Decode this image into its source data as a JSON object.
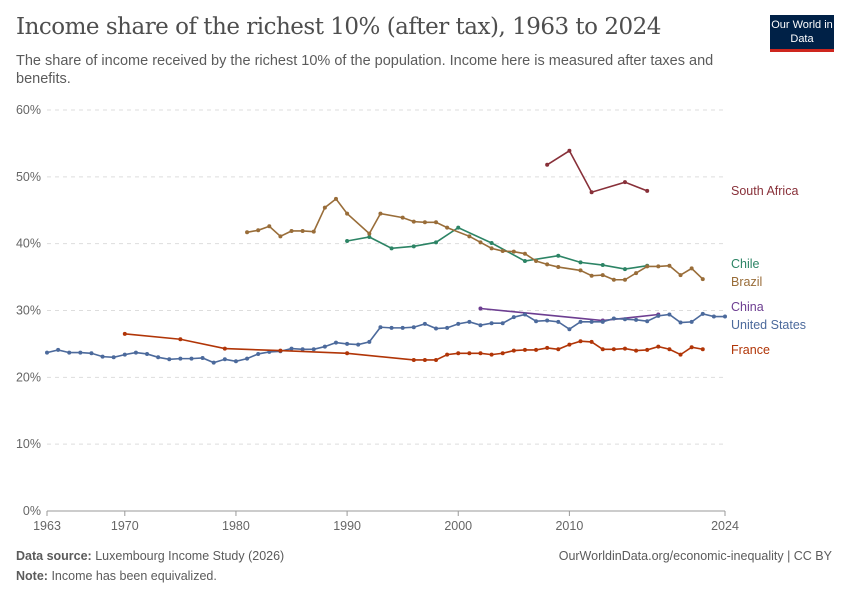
{
  "header": {
    "title": "Income share of the richest 10% (after tax), 1963 to 2024",
    "subtitle": "The share of income received by the richest 10% of the population. Income here is measured after taxes and benefits.",
    "logo": "Our World in Data"
  },
  "footer": {
    "source_label": "Data source:",
    "source": "Luxembourg Income Study (2026)",
    "note_label": "Note:",
    "note": "Income has been equivalized.",
    "url": "OurWorldinData.org/economic-inequality | CC BY"
  },
  "chart_data": {
    "type": "line",
    "title": "Income share of the richest 10% (after tax), 1963 to 2024",
    "xlim": [
      1963,
      2024
    ],
    "ylim": [
      0,
      60
    ],
    "x_ticks": [
      "1963",
      "1970",
      "1980",
      "1990",
      "2000",
      "2010",
      "2024"
    ],
    "y_ticks": [
      "0%",
      "10%",
      "20%",
      "30%",
      "40%",
      "50%",
      "60%"
    ],
    "grid": "horizontal dashed",
    "legend": "right-labels",
    "series": [
      {
        "name": "South Africa",
        "color": "#883039",
        "x": [
          2008,
          2010,
          2012,
          2015,
          2017
        ],
        "y": [
          51.8,
          53.9,
          47.7,
          49.2,
          47.9
        ]
      },
      {
        "name": "Chile",
        "color": "#2c8465",
        "x": [
          1990,
          1992,
          1994,
          1996,
          1998,
          2000,
          2003,
          2006,
          2009,
          2011,
          2013,
          2015,
          2017
        ],
        "y": [
          40.4,
          41.0,
          39.3,
          39.6,
          40.2,
          42.4,
          40.1,
          37.4,
          38.2,
          37.2,
          36.8,
          36.2,
          36.7
        ]
      },
      {
        "name": "Brazil",
        "color": "#996d39",
        "x": [
          1981,
          1982,
          1983,
          1984,
          1985,
          1986,
          1987,
          1988,
          1989,
          1990,
          1992,
          1993,
          1995,
          1996,
          1997,
          1998,
          1999,
          2001,
          2002,
          2003,
          2004,
          2005,
          2006,
          2007,
          2008,
          2009,
          2011,
          2012,
          2013,
          2014,
          2015,
          2016,
          2017,
          2018,
          2019,
          2020,
          2021,
          2022
        ],
        "y": [
          41.7,
          42.0,
          42.6,
          41.1,
          41.9,
          41.9,
          41.8,
          45.4,
          46.7,
          44.5,
          41.5,
          44.5,
          43.9,
          43.3,
          43.2,
          43.2,
          42.4,
          41.1,
          40.2,
          39.3,
          38.9,
          38.8,
          38.5,
          37.4,
          36.9,
          36.5,
          36.0,
          35.2,
          35.3,
          34.6,
          34.6,
          35.6,
          36.6,
          36.6,
          36.7,
          35.3,
          36.3,
          34.7
        ]
      },
      {
        "name": "China",
        "color": "#6d3e91",
        "x": [
          2002,
          2013,
          2018
        ],
        "y": [
          30.3,
          28.5,
          29.4
        ]
      },
      {
        "name": "United States",
        "color": "#4c6a9c",
        "x": [
          1963,
          1964,
          1965,
          1966,
          1967,
          1968,
          1969,
          1970,
          1971,
          1972,
          1973,
          1974,
          1975,
          1976,
          1977,
          1978,
          1979,
          1980,
          1981,
          1982,
          1983,
          1984,
          1985,
          1986,
          1987,
          1988,
          1989,
          1990,
          1991,
          1992,
          1993,
          1994,
          1995,
          1996,
          1997,
          1998,
          1999,
          2000,
          2001,
          2002,
          2003,
          2004,
          2005,
          2006,
          2007,
          2008,
          2009,
          2010,
          2011,
          2012,
          2013,
          2014,
          2015,
          2016,
          2017,
          2018,
          2019,
          2020,
          2021,
          2022,
          2023,
          2024
        ],
        "y": [
          23.7,
          24.1,
          23.7,
          23.7,
          23.6,
          23.1,
          23.0,
          23.4,
          23.7,
          23.5,
          23.0,
          22.7,
          22.8,
          22.8,
          22.9,
          22.2,
          22.7,
          22.4,
          22.8,
          23.5,
          23.8,
          23.9,
          24.3,
          24.2,
          24.2,
          24.6,
          25.2,
          25.0,
          24.9,
          25.3,
          27.5,
          27.4,
          27.4,
          27.5,
          28.0,
          27.3,
          27.4,
          28.0,
          28.3,
          27.8,
          28.1,
          28.1,
          29.0,
          29.4,
          28.4,
          28.5,
          28.3,
          27.2,
          28.3,
          28.3,
          28.3,
          28.8,
          28.7,
          28.6,
          28.4,
          29.2,
          29.4,
          28.2,
          28.3,
          29.5,
          29.1,
          29.1
        ]
      },
      {
        "name": "France",
        "color": "#b13507",
        "x": [
          1970,
          1975,
          1979,
          1984,
          1990,
          1996,
          1997,
          1998,
          1999,
          2000,
          2001,
          2002,
          2003,
          2004,
          2005,
          2006,
          2007,
          2008,
          2009,
          2010,
          2011,
          2012,
          2013,
          2014,
          2015,
          2016,
          2017,
          2018,
          2019,
          2020,
          2021,
          2022
        ],
        "y": [
          26.5,
          25.7,
          24.3,
          24.0,
          23.6,
          22.6,
          22.6,
          22.6,
          23.4,
          23.6,
          23.6,
          23.6,
          23.4,
          23.6,
          24.0,
          24.1,
          24.1,
          24.4,
          24.2,
          24.9,
          25.4,
          25.3,
          24.2,
          24.2,
          24.3,
          24.0,
          24.1,
          24.6,
          24.2,
          23.4,
          24.5,
          24.2
        ]
      }
    ]
  }
}
